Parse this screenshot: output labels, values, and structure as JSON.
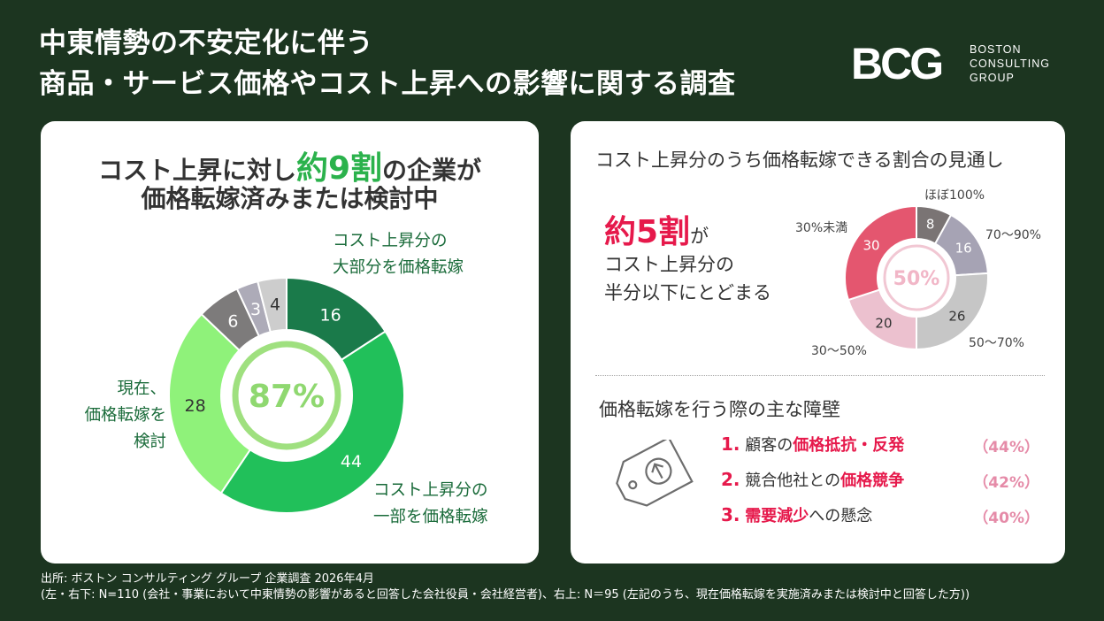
{
  "title_line1": "中東情勢の不安定化に伴う",
  "title_line2": "商品・サービス価格やコスト上昇への影響に関する調査",
  "logo": {
    "mark": "BCG",
    "line1": "BOSTON",
    "line2": "CONSULTING",
    "line3": "GROUP"
  },
  "left": {
    "headline_pre": "コスト上昇に対し",
    "headline_em": "約9割",
    "headline_post": "の企業が",
    "headline_line2": "価格転嫁済みまたは検討中",
    "center_label": "87%",
    "label_most_1": "コスト上昇分の",
    "label_most_2": "大部分を価格転嫁",
    "label_part_1": "コスト上昇分の",
    "label_part_2": "一部を価格転嫁",
    "label_consider_1": "現在、",
    "label_consider_2": "価格転嫁を",
    "label_consider_3": "検討"
  },
  "right": {
    "heading": "コスト上昇分のうち価格転嫁できる割合の見通し",
    "callout_em": "約5割",
    "callout_post": "が",
    "callout_line2": "コスト上昇分の",
    "callout_line3": "半分以下にとどまる",
    "center_label": "50%",
    "barriers_heading": "価格転嫁を行う際の主な障壁",
    "barriers": [
      {
        "num": "1.",
        "pre": "顧客の",
        "em": "価格抵抗・反発",
        "post": "",
        "pct": "（44%）"
      },
      {
        "num": "2.",
        "pre": "競合他社との",
        "em": "価格競争",
        "post": "",
        "pct": "（42%）"
      },
      {
        "num": "3.",
        "pre": "",
        "em": "需要減少",
        "post": "への懸念",
        "pct": "（40%）"
      }
    ]
  },
  "source_line1": "出所: ボストン コンサルティング グループ 企業調査 2026年4月",
  "source_line2": "(左・右下: N=110 (会社・事業において中東情勢の影響があると回答した会社役員・会社経営者)、右上: N＝95 (左記のうち、現在価格転嫁を実施済みまたは検討中と回答した方))",
  "chart_data": [
    {
      "type": "pie",
      "categories": [
        "コスト上昇分の大部分を価格転嫁",
        "コスト上昇分の一部を価格転嫁",
        "現在、価格転嫁を検討",
        "",
        "",
        ""
      ],
      "values": [
        16,
        44,
        28,
        6,
        3,
        4
      ],
      "colors": [
        "#1a7a4a",
        "#21c05a",
        "#8ff27a",
        "#7d7b7b",
        "#adabb8",
        "#cdcdcd"
      ],
      "value_labels": [
        "16",
        "44",
        "28",
        "6",
        "3",
        "4"
      ]
    },
    {
      "type": "pie",
      "categories": [
        "ほぼ100%",
        "70～90%",
        "50～70%",
        "30～50%",
        "30%未満"
      ],
      "values": [
        8,
        16,
        26,
        20,
        30
      ],
      "colors": [
        "#7a7474",
        "#a6a3b4",
        "#c6c6c6",
        "#ecc1cf",
        "#e4566f"
      ],
      "value_labels": [
        "8",
        "16",
        "26",
        "20",
        "30"
      ]
    }
  ]
}
